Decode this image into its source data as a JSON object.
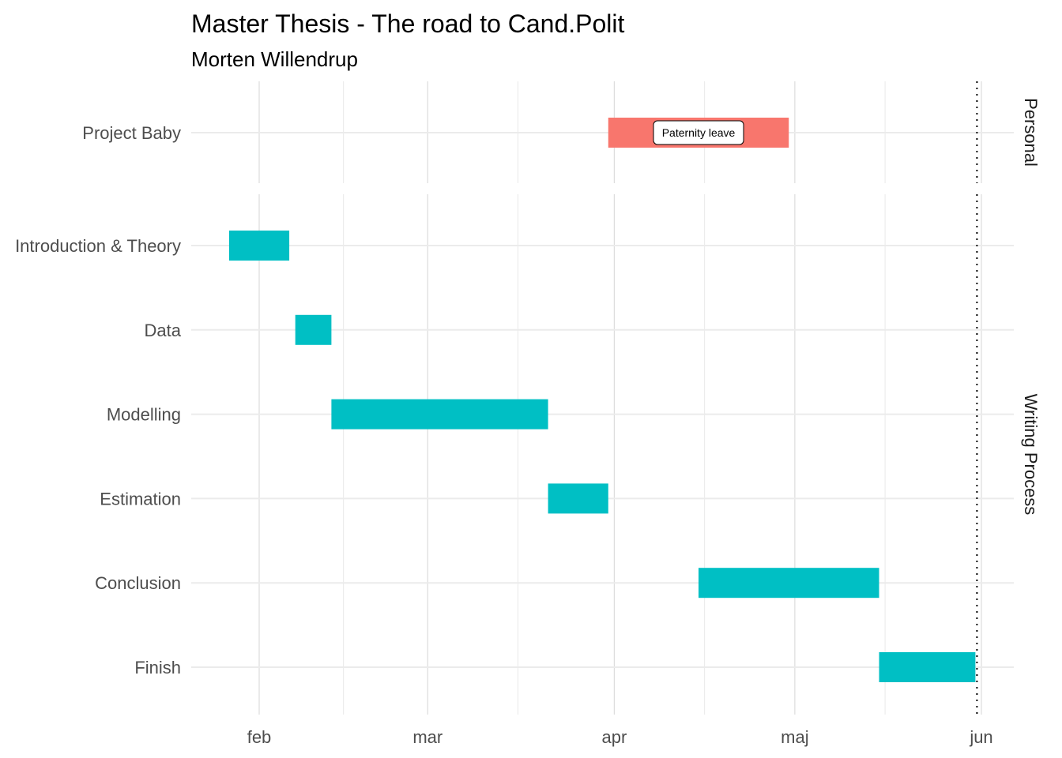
{
  "chart_data": {
    "type": "gantt",
    "title": "Master Thesis - The road to Cand.Polit",
    "subtitle": "Morten Willendrup",
    "x_axis": {
      "type": "date",
      "range": [
        "2023-01-25",
        "2023-06-05"
      ],
      "ticks": [
        {
          "date": "2023-02-01",
          "label": "feb"
        },
        {
          "date": "2023-03-01",
          "label": "mar"
        },
        {
          "date": "2023-04-01",
          "label": "apr"
        },
        {
          "date": "2023-05-01",
          "label": "maj"
        },
        {
          "date": "2023-06-01",
          "label": "jun"
        }
      ],
      "minor_ticks": [
        "2023-02-15",
        "2023-03-16",
        "2023-04-16",
        "2023-05-16"
      ]
    },
    "facets": [
      {
        "label": "Personal",
        "tasks": [
          {
            "name": "Project Baby",
            "start": "2023-03-31",
            "end": "2023-04-30",
            "color": "#F8766D",
            "annotation": "Paternity leave"
          }
        ]
      },
      {
        "label": "Writing Process",
        "tasks": [
          {
            "name": "Introduction & Theory",
            "start": "2023-01-27",
            "end": "2023-02-06",
            "color": "#00BFC4"
          },
          {
            "name": "Data",
            "start": "2023-02-07",
            "end": "2023-02-13",
            "color": "#00BFC4"
          },
          {
            "name": "Modelling",
            "start": "2023-02-13",
            "end": "2023-03-21",
            "color": "#00BFC4"
          },
          {
            "name": "Estimation",
            "start": "2023-03-21",
            "end": "2023-03-31",
            "color": "#00BFC4"
          },
          {
            "name": "Conclusion",
            "start": "2023-04-15",
            "end": "2023-05-15",
            "color": "#00BFC4"
          },
          {
            "name": "Finish",
            "start": "2023-05-15",
            "end": "2023-05-31",
            "color": "#00BFC4"
          }
        ]
      }
    ],
    "reference_line": {
      "date": "2023-05-31",
      "style": "dotted"
    },
    "grid": true,
    "legend": "none"
  }
}
